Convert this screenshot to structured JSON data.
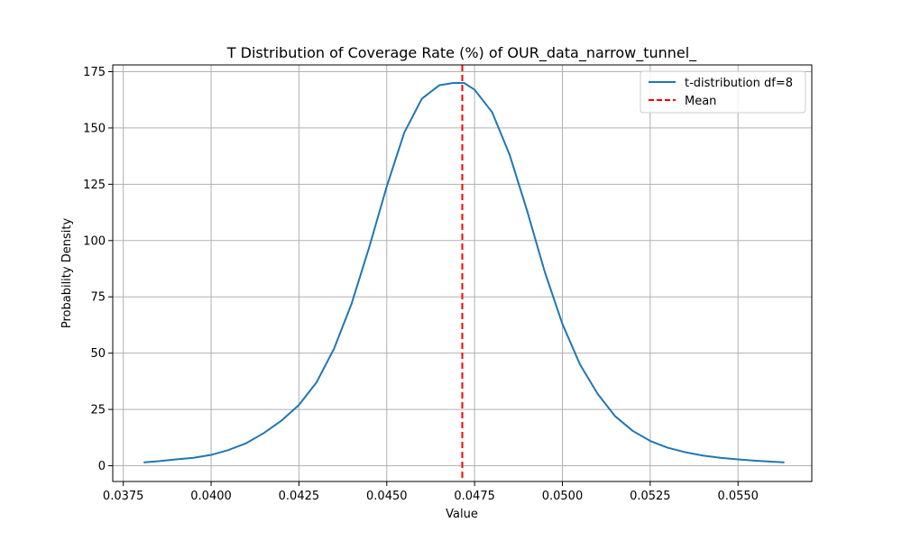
{
  "chart_data": {
    "type": "line",
    "title": "T Distribution of Coverage Rate (%) of OUR_data_narrow_tunnel_",
    "xlabel": "Value",
    "ylabel": "Probability Density",
    "xlim": [
      0.0372,
      0.0571
    ],
    "ylim": [
      -7,
      178
    ],
    "xticks": [
      0.0375,
      0.04,
      0.0425,
      0.045,
      0.0475,
      0.05,
      0.0525,
      0.055
    ],
    "xtick_labels": [
      "0.0375",
      "0.0400",
      "0.0425",
      "0.0450",
      "0.0475",
      "0.0500",
      "0.0525",
      "0.0550"
    ],
    "yticks": [
      0,
      25,
      50,
      75,
      100,
      125,
      150,
      175
    ],
    "ytick_labels": [
      "0",
      "25",
      "50",
      "75",
      "100",
      "125",
      "150",
      "175"
    ],
    "grid": true,
    "legend_position": "top-right",
    "series": [
      {
        "name": "t-distribution df=8",
        "color": "#1f77b4",
        "style": "solid",
        "x": [
          0.0381,
          0.0385,
          0.039,
          0.0395,
          0.04,
          0.0405,
          0.041,
          0.0415,
          0.042,
          0.0425,
          0.043,
          0.0435,
          0.044,
          0.0445,
          0.045,
          0.0455,
          0.046,
          0.0465,
          0.0469,
          0.0472,
          0.0475,
          0.048,
          0.0485,
          0.049,
          0.0495,
          0.05,
          0.0505,
          0.051,
          0.0515,
          0.052,
          0.0525,
          0.053,
          0.0535,
          0.054,
          0.0545,
          0.055,
          0.0555,
          0.0563
        ],
        "y": [
          1.5,
          2.0,
          2.8,
          3.5,
          4.8,
          7.0,
          10.0,
          14.5,
          20.0,
          27.0,
          37.0,
          52.0,
          72.0,
          97.0,
          124.0,
          148.0,
          163.0,
          169.0,
          170.0,
          170.0,
          167.0,
          157.0,
          138.0,
          113.0,
          86.0,
          63.0,
          45.0,
          32.0,
          22.0,
          15.5,
          11.0,
          8.0,
          6.0,
          4.5,
          3.5,
          2.8,
          2.2,
          1.5
        ]
      },
      {
        "name": "Mean",
        "color": "#ff0000",
        "style": "dashed",
        "x_value": 0.04715
      }
    ]
  }
}
